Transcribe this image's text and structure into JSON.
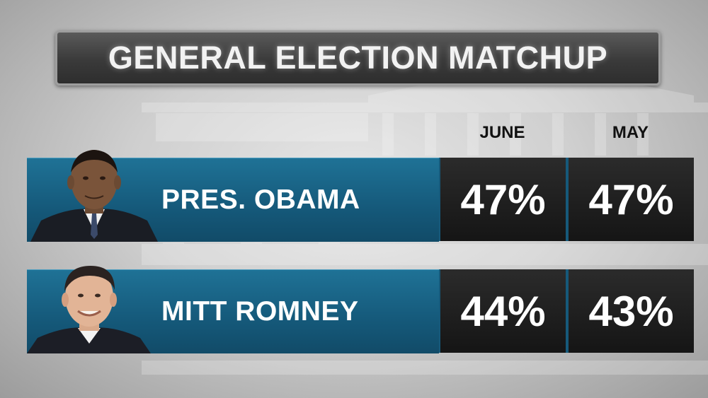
{
  "title": "GENERAL ELECTION MATCHUP",
  "chart_data": {
    "type": "table",
    "title": "GENERAL ELECTION MATCHUP",
    "columns": [
      "JUNE",
      "MAY"
    ],
    "rows": [
      {
        "name": "PRES. OBAMA",
        "values": [
          "47%",
          "47%"
        ],
        "numeric": [
          47,
          47
        ]
      },
      {
        "name": "MITT ROMNEY",
        "values": [
          "44%",
          "43%"
        ],
        "numeric": [
          44,
          43
        ]
      }
    ]
  },
  "colors": {
    "name_panel": "#15597a",
    "value_box": "#1c1c1c",
    "title_bar": "#3a3a3a",
    "text": "#ffffff"
  }
}
